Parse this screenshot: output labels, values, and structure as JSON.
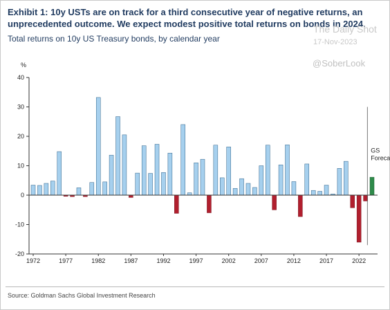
{
  "header": {
    "title": "Exhibit 1: 10y USTs are on track for a third consecutive year of negative returns, an unprecedented outcome. We expect modest positive total returns on bonds in 2024.",
    "subtitle": "Total returns on 10y US Treasury bonds, by calendar year"
  },
  "watermark": {
    "brand": "The Daily Shot",
    "date": "17-Nov-2023",
    "handle": "@SoberLook"
  },
  "source": "Source: Goldman Sachs Global Investment Research",
  "chart_data": {
    "type": "bar",
    "ylabel": "%",
    "ylim": [
      -20,
      40
    ],
    "yticks": [
      -20,
      -10,
      0,
      10,
      20,
      30,
      40
    ],
    "xticks": [
      1972,
      1977,
      1982,
      1987,
      1992,
      1997,
      2002,
      2007,
      2012,
      2017,
      2022
    ],
    "grid": false,
    "x": [
      1972,
      1973,
      1974,
      1975,
      1976,
      1977,
      1978,
      1979,
      1980,
      1981,
      1982,
      1983,
      1984,
      1985,
      1986,
      1987,
      1988,
      1989,
      1990,
      1991,
      1992,
      1993,
      1994,
      1995,
      1996,
      1997,
      1998,
      1999,
      2000,
      2001,
      2002,
      2003,
      2004,
      2005,
      2006,
      2007,
      2008,
      2009,
      2010,
      2011,
      2012,
      2013,
      2014,
      2015,
      2016,
      2017,
      2018,
      2019,
      2020,
      2021,
      2022,
      2023,
      2024
    ],
    "values": [
      3.4,
      3.3,
      4.0,
      4.8,
      14.8,
      -0.4,
      -0.5,
      2.5,
      -0.5,
      4.3,
      33.2,
      4.5,
      13.6,
      26.7,
      20.5,
      -0.8,
      7.5,
      16.8,
      7.4,
      17.3,
      7.7,
      14.3,
      -6.2,
      24.0,
      0.8,
      11.0,
      12.2,
      -6.0,
      17.0,
      5.9,
      16.4,
      2.3,
      5.6,
      4.0,
      2.6,
      10.0,
      17.0,
      -5.0,
      10.3,
      17.1,
      4.6,
      -7.3,
      10.6,
      1.6,
      1.3,
      3.4,
      0.4,
      9.1,
      11.5,
      -4.3,
      -16.0,
      -2.0,
      6.1
    ],
    "forecast_year": 2024,
    "forecast_label": [
      "GS",
      "Forecast"
    ],
    "colors": {
      "positive": "#a6d0ee",
      "negative": "#b11f2e",
      "forecast": "#2e8b4a",
      "bar_edge": "#2c5f86"
    }
  }
}
